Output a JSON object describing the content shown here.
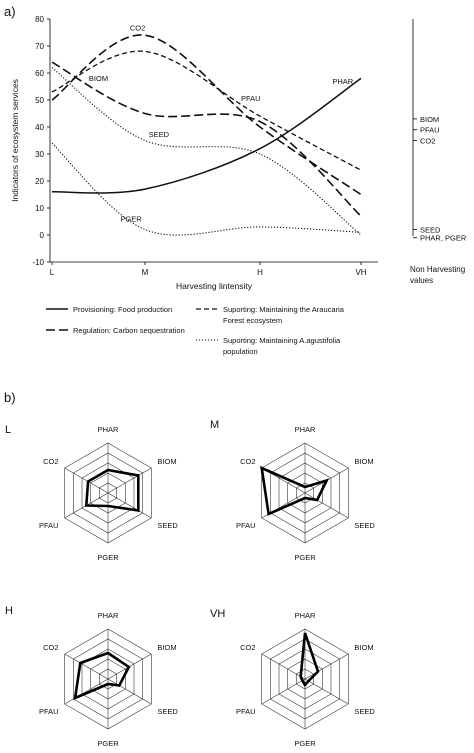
{
  "panel_a": {
    "label": "a)",
    "right_axis_label": "Non Harvesting\nvalues",
    "chart_data": {
      "type": "line",
      "xlabel": "Harvesting lintensity",
      "ylabel": "Indicators of ecosystem services",
      "x": [
        "L",
        "M",
        "H",
        "VH"
      ],
      "ylim": [
        -10,
        80
      ],
      "yticks": [
        -10,
        0,
        10,
        20,
        30,
        40,
        50,
        60,
        70,
        80
      ],
      "grid": false,
      "series": [
        {
          "name": "PHAR",
          "style": "solid",
          "values": [
            16,
            17,
            32,
            58
          ]
        },
        {
          "name": "CO2",
          "style": "longdash",
          "values": [
            50,
            74,
            40,
            15
          ]
        },
        {
          "name": "BIOM",
          "style": "longdash",
          "values": [
            64,
            45,
            42,
            7
          ]
        },
        {
          "name": "PFAU",
          "style": "shortdash",
          "values": [
            53,
            68,
            44,
            24
          ]
        },
        {
          "name": "SEED",
          "style": "dotted",
          "values": [
            62,
            35,
            30,
            0
          ]
        },
        {
          "name": "PGER",
          "style": "dotted",
          "values": [
            34,
            2,
            3,
            1
          ]
        }
      ],
      "annotations": [
        "CO2",
        "PFAU",
        "PHAR",
        "BIOM",
        "SEED",
        "PGER"
      ],
      "right_axis_labels": [
        {
          "text": "BIOM",
          "value": 43
        },
        {
          "text": "PFAU",
          "value": 39
        },
        {
          "text": "CO2",
          "value": 35
        },
        {
          "text": "SEED",
          "value": 2
        },
        {
          "text": "PHAR, PGER",
          "value": -1
        }
      ],
      "legend": {
        "placement": "bottom",
        "items": [
          {
            "style": "solid",
            "text": "Provisioning: Food production"
          },
          {
            "style": "longdash",
            "text": "Regulation: Carbon sequestration"
          },
          {
            "style": "shortdash",
            "text": "Suporting: Maintaining the Araucaria\nForest ecosystem"
          },
          {
            "style": "dotted",
            "text": "Suporting: Maintaining A.agustifolia\npopulation"
          }
        ]
      }
    }
  },
  "panel_b": {
    "label": "b)",
    "chart_data": [
      {
        "type": "radar",
        "title": "L",
        "axes": [
          "PHAR",
          "BIOM",
          "SEED",
          "PGER",
          "PFAU",
          "CO2"
        ],
        "rmax": 5,
        "values": [
          2.3,
          3.5,
          3.5,
          1.3,
          2.5,
          2.3
        ]
      },
      {
        "type": "radar",
        "title": "M",
        "axes": [
          "PHAR",
          "BIOM",
          "SEED",
          "PGER",
          "PFAU",
          "CO2"
        ],
        "rmax": 5,
        "values": [
          0.6,
          2.5,
          1.4,
          0.5,
          4.2,
          5
        ]
      },
      {
        "type": "radar",
        "title": "H",
        "axes": [
          "PHAR",
          "BIOM",
          "SEED",
          "PGER",
          "PFAU",
          "CO2"
        ],
        "rmax": 5,
        "values": [
          2.6,
          2.4,
          1.3,
          0.5,
          3.8,
          3.2
        ]
      },
      {
        "type": "radar",
        "title": "VH",
        "axes": [
          "PHAR",
          "BIOM",
          "SEED",
          "PGER",
          "PFAU",
          "CO2"
        ],
        "rmax": 5,
        "values": [
          4.6,
          1.5,
          0.4,
          0.6,
          0.3,
          0.5
        ]
      }
    ]
  }
}
